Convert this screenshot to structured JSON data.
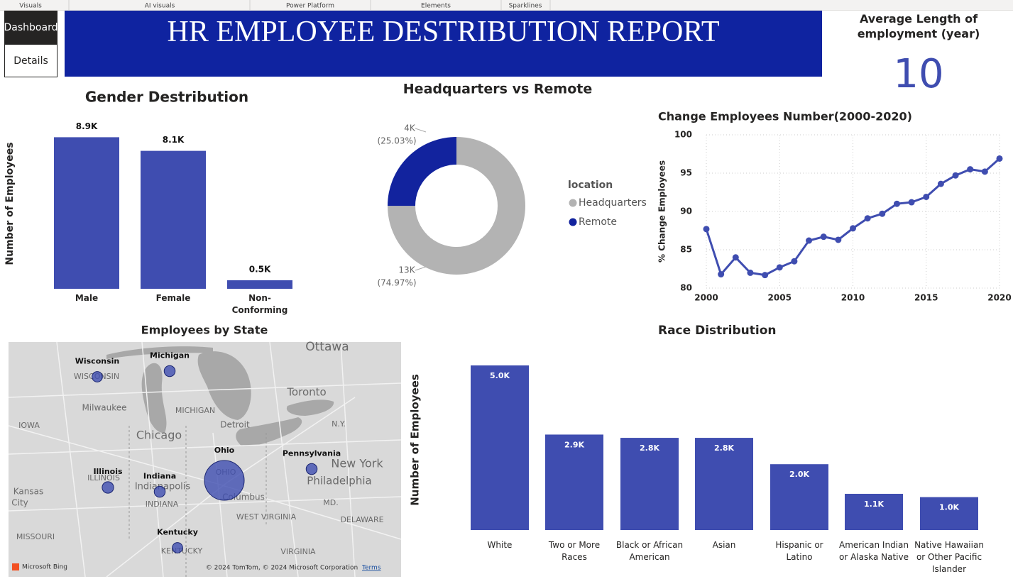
{
  "toolbar": {
    "tabs": [
      "Visuals",
      "AI visuals",
      "Power Platform",
      "Elements",
      "Sparklines"
    ]
  },
  "nav": {
    "buttons": [
      "Dashboard",
      "Details"
    ]
  },
  "header": {
    "title": "HR EMPLOYEE DESTRIBUTION REPORT"
  },
  "kpi": {
    "label": "Average Length of employment (year)",
    "value": 10
  },
  "chart_data": [
    {
      "type": "bar",
      "title": "Gender Destribution",
      "y_label": "Number of Employees",
      "categories": [
        "Male",
        "Female",
        "Non-Conforming"
      ],
      "values": [
        8900,
        8100,
        500
      ],
      "value_labels": [
        "8.9K",
        "8.1K",
        "0.5K"
      ],
      "color": "#3f4db0",
      "ylim": [
        0,
        9000
      ],
      "label_position": "outside"
    },
    {
      "type": "donut",
      "title": "Headquarters vs Remote",
      "legend_title": "location",
      "categories": [
        "Headquarters",
        "Remote"
      ],
      "values": [
        74.97,
        25.03
      ],
      "value_labels": [
        "(74.97%)",
        "(25.03%)"
      ],
      "count_labels": [
        "13K",
        "4K"
      ],
      "colors": [
        "#b3b3b3",
        "#12239e"
      ]
    },
    {
      "type": "line",
      "title": "Change Employees Number(2000-2020)",
      "y_label": "% Change Employees",
      "x": [
        2000,
        2001,
        2002,
        2003,
        2004,
        2005,
        2006,
        2007,
        2008,
        2009,
        2010,
        2011,
        2012,
        2013,
        2014,
        2015,
        2016,
        2017,
        2018,
        2019,
        2020
      ],
      "values": [
        87.7,
        81.8,
        84.0,
        82.0,
        81.7,
        82.7,
        83.5,
        86.2,
        86.7,
        86.3,
        87.8,
        89.1,
        89.7,
        91.0,
        91.2,
        91.9,
        93.6,
        94.7,
        95.5,
        95.2,
        96.9
      ],
      "color": "#3f4db0",
      "xlim": [
        2000,
        2020
      ],
      "xticks": [
        2000,
        2005,
        2010,
        2015,
        2020
      ],
      "ylim": [
        80,
        100
      ],
      "yticks": [
        80,
        85,
        90,
        95,
        100
      ],
      "grid": true
    },
    {
      "type": "map",
      "title": "Employees by State",
      "categories": [
        "Wisconsin",
        "Michigan",
        "Ohio",
        "Pennsylvania",
        "Illinois",
        "Indiana",
        "Kentucky"
      ],
      "values": [
        900,
        1000,
        13100,
        1000,
        1100,
        1000,
        900
      ],
      "color": "#3f4db0",
      "annotations": [
        "Ottawa",
        "Toronto",
        "Milwaukee",
        "MICHIGAN",
        "IOWA",
        "Chicago",
        "Detroit",
        "N.Y.",
        "New York",
        "Philadelphia",
        "Kansas",
        "City",
        "ILLINOIS",
        "Indianapolis",
        "INDIANA",
        "OHIO",
        "Columbus",
        "WEST VIRGINIA",
        "MD.",
        "DELAWARE",
        "MISSOURI",
        "KENTUCKY",
        "VIRGINIA",
        "WISCONSIN"
      ],
      "provider": "Microsoft Bing",
      "attribution": "© 2024 TomTom, © 2024 Microsoft Corporation",
      "terms_link": "Terms"
    },
    {
      "type": "bar",
      "title": "Race Distribution",
      "y_label": "Number of Employees",
      "categories": [
        "White",
        "Two or More Races",
        "Black or African American",
        "Asian",
        "Hispanic or Latino",
        "American Indian or Alaska Native",
        "Native Hawaiian or Other Pacific Islander"
      ],
      "values": [
        5000,
        2900,
        2800,
        2800,
        2000,
        1100,
        1000
      ],
      "value_labels": [
        "5.0K",
        "2.9K",
        "2.8K",
        "2.8K",
        "2.0K",
        "1.1K",
        "1.0K"
      ],
      "color": "#3f4db0",
      "ylim": [
        0,
        5000
      ],
      "label_position": "inside"
    }
  ]
}
